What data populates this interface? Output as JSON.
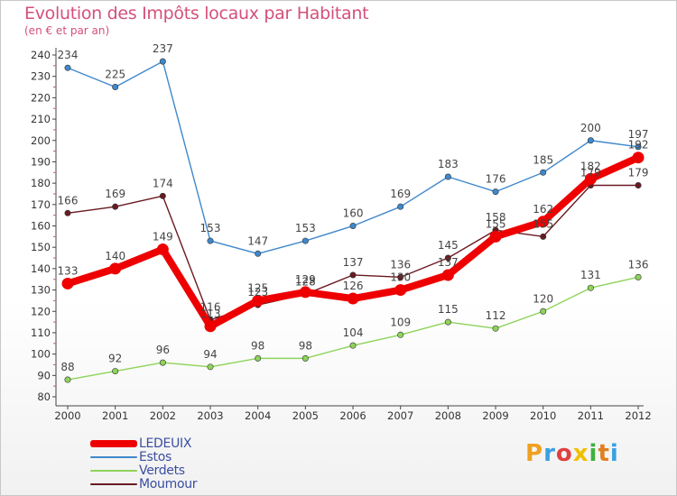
{
  "chart_data": {
    "type": "line",
    "title": "Evolution des Impôts locaux par Habitant",
    "subtitle": "(en € et par an)",
    "categories": [
      "2000",
      "2001",
      "2002",
      "2003",
      "2004",
      "2005",
      "2006",
      "2007",
      "2008",
      "2009",
      "2010",
      "2011",
      "2012"
    ],
    "ylim": [
      80,
      240
    ],
    "yticks": [
      80,
      90,
      100,
      110,
      120,
      130,
      140,
      150,
      160,
      170,
      180,
      190,
      200,
      210,
      220,
      230,
      240
    ],
    "grid": false,
    "legend_position": "bottom-left",
    "series": [
      {
        "name": "LEDEUIX",
        "color": "#ee0000",
        "values": [
          133,
          140,
          149,
          113,
          125,
          129,
          126,
          130,
          137,
          155,
          162,
          182,
          192
        ]
      },
      {
        "name": "Estos",
        "color": "#3f88cc",
        "values": [
          234,
          225,
          237,
          153,
          147,
          153,
          160,
          169,
          183,
          176,
          185,
          200,
          197
        ]
      },
      {
        "name": "Verdets",
        "color": "#8ed35a",
        "values": [
          88,
          92,
          96,
          94,
          98,
          98,
          104,
          109,
          115,
          112,
          120,
          131,
          136
        ]
      },
      {
        "name": "Moumour",
        "color": "#6a1a22",
        "values": [
          166,
          169,
          174,
          116,
          123,
          128,
          137,
          136,
          145,
          158,
          155,
          179,
          179
        ]
      }
    ]
  },
  "legend": {
    "items": [
      "LEDEUIX",
      "Estos",
      "Verdets",
      "Moumour"
    ]
  },
  "logo": {
    "letters": [
      "P",
      "r",
      "o",
      "x",
      "i",
      "t",
      "i"
    ],
    "colors": [
      "#f0a020",
      "#3aa0e0",
      "#e04040",
      "#f0c000",
      "#40b040",
      "#e08020",
      "#3aa0e0"
    ]
  }
}
